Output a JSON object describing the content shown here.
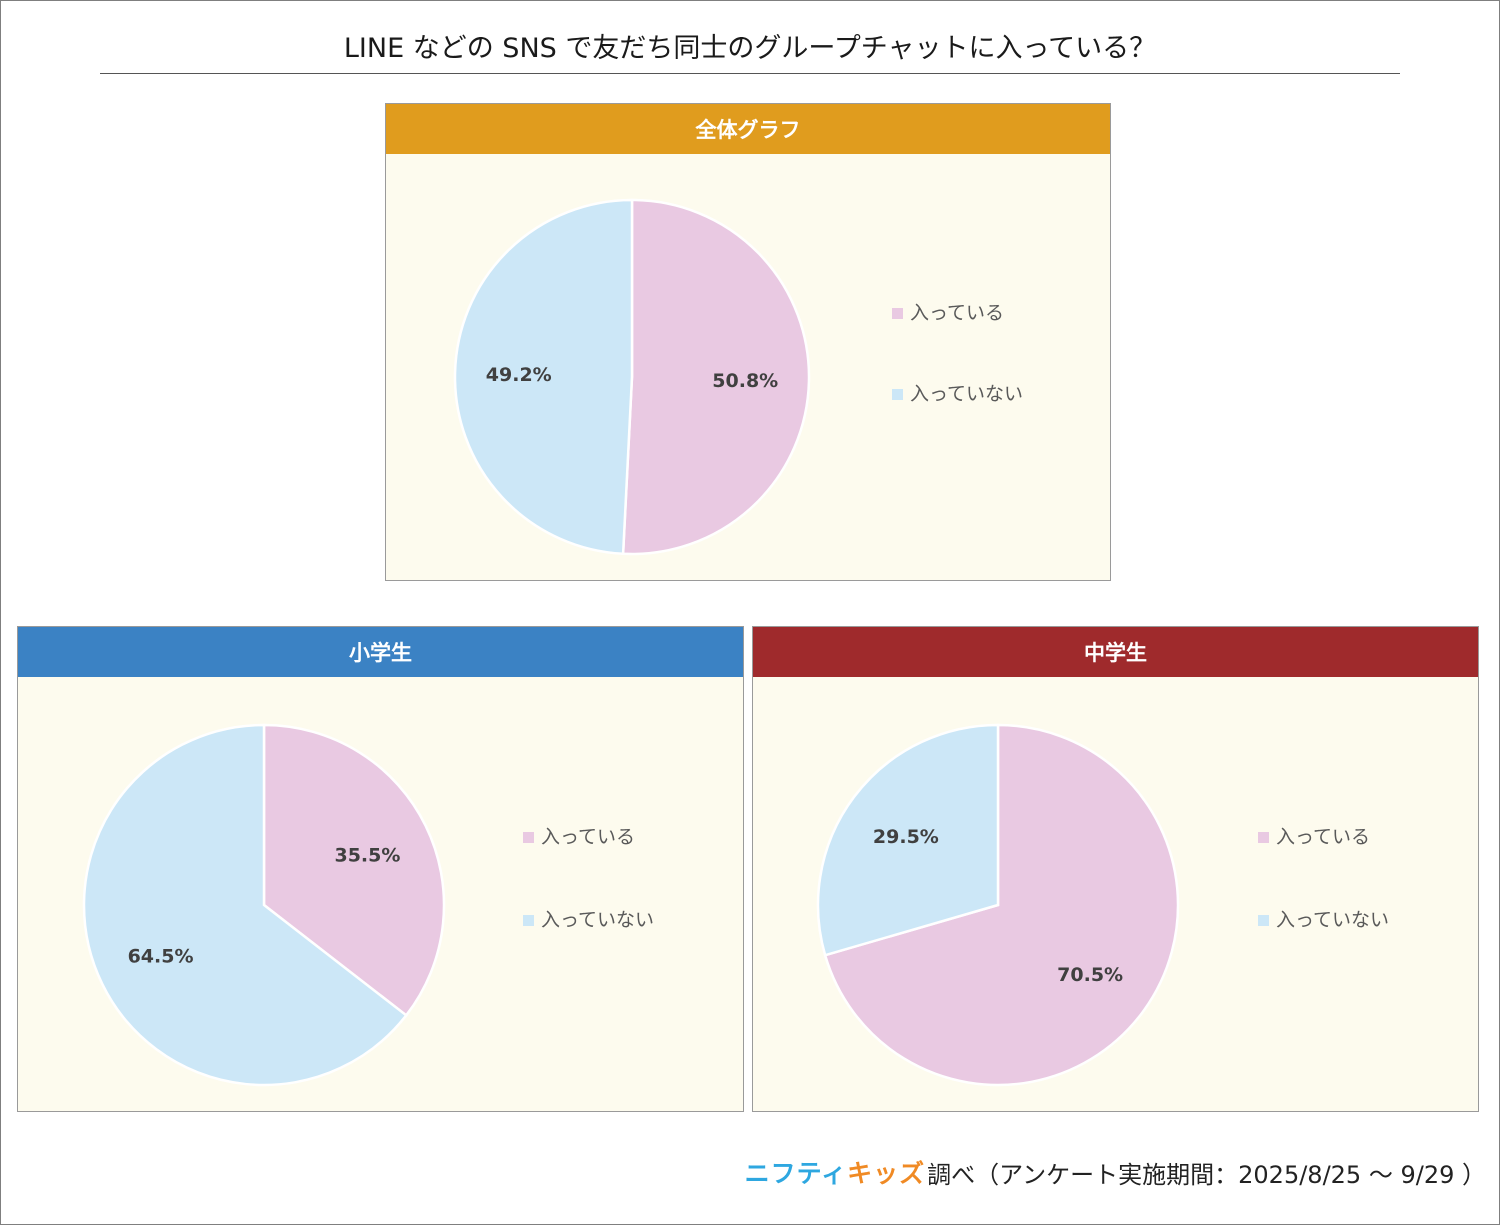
{
  "page": {
    "title": "LINE などの SNS で友だち同士のグループチャットに入っている？"
  },
  "colors": {
    "joined": "#e9c9e2",
    "not_joined": "#cce7f7",
    "panel_bg": "#fdfbee",
    "header_all": "#e09c1e",
    "header_elem": "#3b82c4",
    "header_middle": "#9f2a2c"
  },
  "footer": {
    "brand_part1": "ニフティ",
    "brand_part2": "キッズ",
    "text": "調べ（アンケート実施期間：2025/8/25 ～ 9/29 ）"
  },
  "chart_data": [
    {
      "type": "pie",
      "title": "全体グラフ",
      "categories": [
        "入っている",
        "入っていない"
      ],
      "values": [
        50.8,
        49.2
      ],
      "labels": [
        "50.8%",
        "49.2%"
      ],
      "legend": "right"
    },
    {
      "type": "pie",
      "title": "小学生",
      "categories": [
        "入っている",
        "入っていない"
      ],
      "values": [
        35.5,
        64.5
      ],
      "labels": [
        "35.5%",
        "64.5%"
      ],
      "legend": "right"
    },
    {
      "type": "pie",
      "title": "中学生",
      "categories": [
        "入っている",
        "入っていない"
      ],
      "values": [
        70.5,
        29.5
      ],
      "labels": [
        "70.5%",
        "29.5%"
      ],
      "legend": "right"
    }
  ]
}
